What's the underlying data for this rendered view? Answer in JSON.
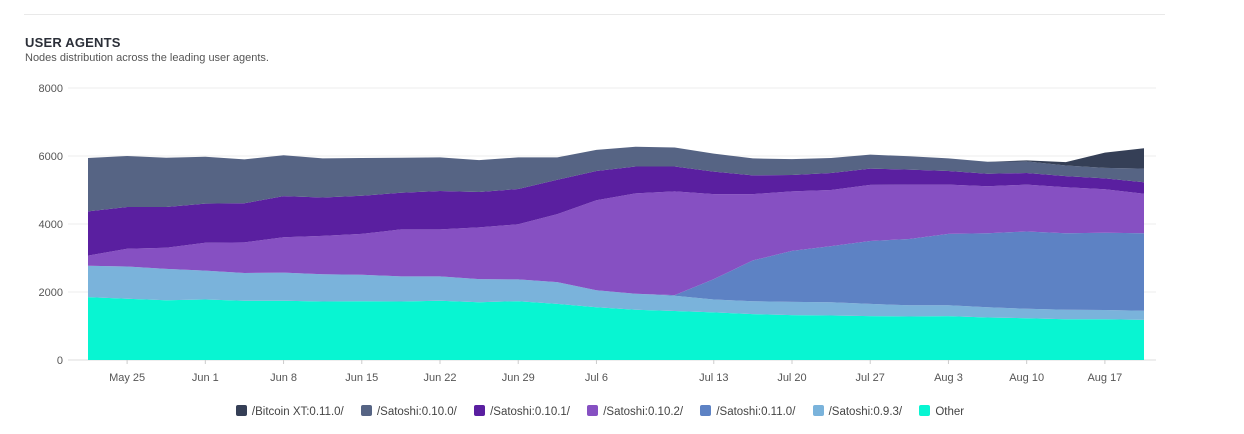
{
  "header": {
    "title": "USER AGENTS",
    "subtitle": "Nodes distribution across the leading user agents."
  },
  "chart_data": {
    "type": "area",
    "stacked": true,
    "title": "USER AGENTS",
    "subtitle": "Nodes distribution across the leading user agents.",
    "ylim": [
      0,
      8000
    ],
    "y_ticks": [
      0,
      2000,
      4000,
      6000,
      8000
    ],
    "grid": true,
    "legend_position": "bottom",
    "x_ticks": [
      "May 25",
      "Jun 1",
      "Jun 8",
      "Jun 15",
      "Jun 22",
      "Jun 29",
      "Jul 6",
      "Jul 13",
      "Jul 20",
      "Jul 27",
      "Aug 3",
      "Aug 10",
      "Aug 17"
    ],
    "x": [
      "May 21",
      "May 25",
      "May 29",
      "Jun 1",
      "Jun 5",
      "Jun 8",
      "Jun 12",
      "Jun 15",
      "Jun 19",
      "Jun 22",
      "Jun 26",
      "Jun 29",
      "Jul 3",
      "Jul 6",
      "Jul 9",
      "Jul 11",
      "Jul 13",
      "Jul 17",
      "Jul 20",
      "Jul 24",
      "Jul 27",
      "Jul 31",
      "Aug 3",
      "Aug 7",
      "Aug 10",
      "Aug 14",
      "Aug 17",
      "Aug 18"
    ],
    "series": [
      {
        "name": "Other",
        "color": "#08f5d2",
        "values": [
          1850,
          1800,
          1760,
          1780,
          1740,
          1740,
          1720,
          1730,
          1720,
          1740,
          1700,
          1730,
          1650,
          1550,
          1480,
          1440,
          1400,
          1350,
          1320,
          1310,
          1290,
          1280,
          1290,
          1250,
          1230,
          1200,
          1200,
          1180
        ]
      },
      {
        "name": "/Satoshi:0.9.3/",
        "color": "#7ab3db",
        "values": [
          920,
          950,
          920,
          850,
          820,
          830,
          800,
          780,
          740,
          720,
          680,
          640,
          640,
          500,
          470,
          450,
          380,
          380,
          390,
          390,
          360,
          330,
          320,
          300,
          280,
          280,
          270,
          270
        ]
      },
      {
        "name": "/Satoshi:0.11.0/",
        "color": "#5d82c4",
        "values": [
          0,
          0,
          0,
          0,
          0,
          0,
          0,
          0,
          0,
          0,
          0,
          0,
          0,
          0,
          0,
          20,
          600,
          1200,
          1500,
          1650,
          1850,
          1950,
          2100,
          2180,
          2270,
          2250,
          2270,
          2280
        ]
      },
      {
        "name": "/Satoshi:0.10.2/",
        "color": "#8650c2",
        "values": [
          300,
          520,
          620,
          820,
          900,
          1040,
          1130,
          1200,
          1380,
          1380,
          1520,
          1620,
          2000,
          2650,
          2950,
          3050,
          2500,
          1950,
          1750,
          1650,
          1650,
          1600,
          1450,
          1380,
          1380,
          1350,
          1280,
          1160
        ]
      },
      {
        "name": "/Satoshi:0.10.1/",
        "color": "#5a1fa0",
        "values": [
          1300,
          1230,
          1200,
          1150,
          1150,
          1210,
          1130,
          1120,
          1080,
          1130,
          1040,
          1040,
          1010,
          860,
          790,
          730,
          660,
          550,
          480,
          500,
          480,
          440,
          400,
          370,
          340,
          330,
          320,
          340
        ]
      },
      {
        "name": "/Satoshi:0.10.0/",
        "color": "#566484",
        "values": [
          1570,
          1500,
          1450,
          1380,
          1290,
          1200,
          1150,
          1110,
          1030,
          990,
          940,
          930,
          660,
          620,
          580,
          560,
          530,
          500,
          470,
          440,
          410,
          390,
          370,
          350,
          340,
          310,
          310,
          400
        ]
      },
      {
        "name": "/Bitcoin XT:0.11.0/",
        "color": "#353f56",
        "values": [
          0,
          0,
          0,
          0,
          0,
          0,
          0,
          0,
          0,
          0,
          0,
          0,
          0,
          0,
          0,
          0,
          0,
          0,
          0,
          0,
          0,
          0,
          0,
          0,
          30,
          100,
          450,
          600
        ]
      }
    ]
  },
  "legend": {
    "items": [
      {
        "label": "/Bitcoin XT:0.11.0/",
        "color": "#353f56"
      },
      {
        "label": "/Satoshi:0.10.0/",
        "color": "#566484"
      },
      {
        "label": "/Satoshi:0.10.1/",
        "color": "#5a1fa0"
      },
      {
        "label": "/Satoshi:0.10.2/",
        "color": "#8650c2"
      },
      {
        "label": "/Satoshi:0.11.0/",
        "color": "#5d82c4"
      },
      {
        "label": "/Satoshi:0.9.3/",
        "color": "#7ab3db"
      },
      {
        "label": "Other",
        "color": "#08f5d2"
      }
    ]
  }
}
